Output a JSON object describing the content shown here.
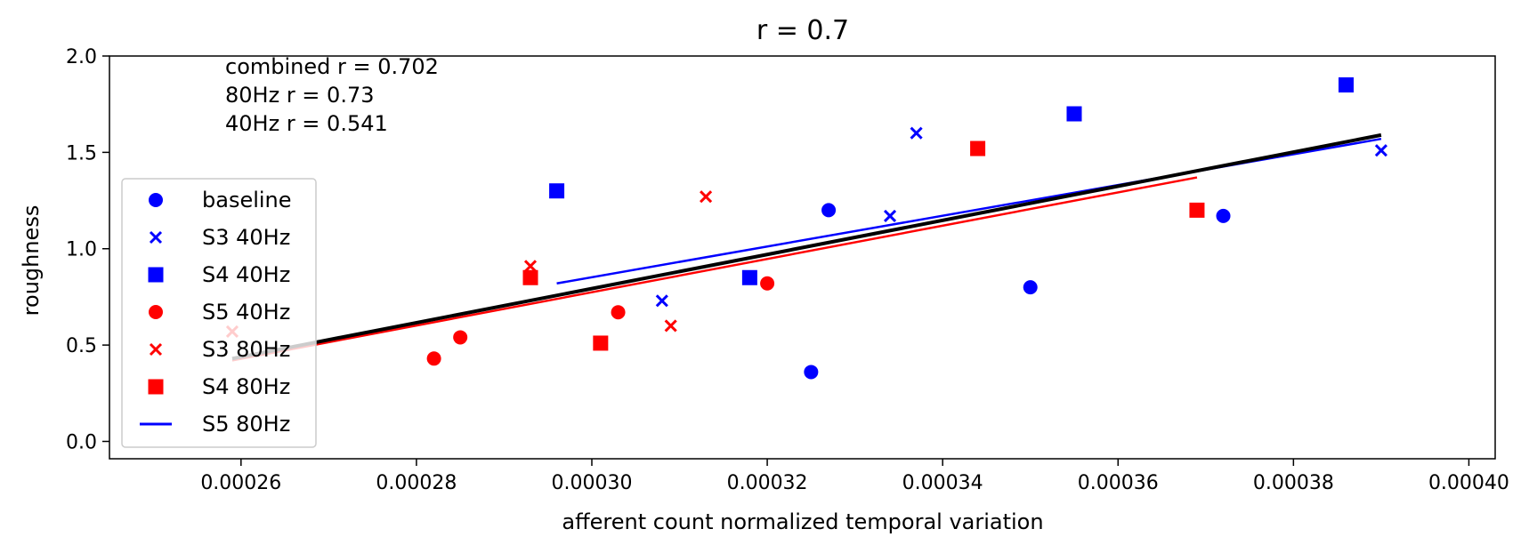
{
  "chart_data": {
    "type": "scatter",
    "title": "r = 0.7",
    "xlabel": "afferent count normalized temporal variation",
    "ylabel": "roughness",
    "xlim": [
      0.000245,
      0.000403
    ],
    "ylim": [
      -0.09,
      2.0
    ],
    "x_ticks": [
      0.00026,
      0.00028,
      0.0003,
      0.00032,
      0.00034,
      0.00036,
      0.00038,
      0.0004
    ],
    "x_tick_labels": [
      "0.00026",
      "0.00028",
      "0.00030",
      "0.00032",
      "0.00034",
      "0.00036",
      "0.00038",
      "0.00040"
    ],
    "y_ticks": [
      0.0,
      0.5,
      1.0,
      1.5,
      2.0
    ],
    "y_tick_labels": [
      "0.0",
      "0.5",
      "1.0",
      "1.5",
      "2.0"
    ],
    "grid": false,
    "legend_placement": "center-left",
    "annotations": [
      "combined r = 0.702",
      "80Hz r = 0.73",
      "40Hz r = 0.541"
    ],
    "series": [
      {
        "name": "baseline",
        "marker": "circle",
        "color": "#0000ff",
        "points": [
          [
            0.000327,
            1.2
          ],
          [
            0.000325,
            0.36
          ],
          [
            0.00035,
            0.8
          ],
          [
            0.000372,
            1.17
          ]
        ]
      },
      {
        "name": "S3 40Hz",
        "marker": "x",
        "color": "#0000ff",
        "points": [
          [
            0.000308,
            0.73
          ],
          [
            0.000334,
            1.17
          ],
          [
            0.000337,
            1.6
          ],
          [
            0.00039,
            1.51
          ]
        ]
      },
      {
        "name": "S4 40Hz",
        "marker": "square",
        "color": "#0000ff",
        "points": [
          [
            0.000296,
            1.3
          ],
          [
            0.000318,
            0.85
          ],
          [
            0.000355,
            1.7
          ],
          [
            0.000386,
            1.85
          ]
        ]
      },
      {
        "name": "S5 40Hz",
        "marker": "circle",
        "color": "#ff0000",
        "points": [
          [
            0.000282,
            0.43
          ],
          [
            0.000285,
            0.54
          ],
          [
            0.000303,
            0.67
          ],
          [
            0.00032,
            0.82
          ]
        ]
      },
      {
        "name": "S3 80Hz",
        "marker": "x",
        "color": "#ff0000",
        "points": [
          [
            0.000259,
            0.57
          ],
          [
            0.000293,
            0.91
          ],
          [
            0.000309,
            0.6
          ],
          [
            0.000313,
            1.27
          ]
        ]
      },
      {
        "name": "S4 80Hz",
        "marker": "square",
        "color": "#ff0000",
        "points": [
          [
            0.000293,
            0.85
          ],
          [
            0.000301,
            0.51
          ],
          [
            0.000344,
            1.52
          ],
          [
            0.000369,
            1.2
          ]
        ]
      },
      {
        "name": "S5 80Hz",
        "marker": "line",
        "color": "#0000ff",
        "points": []
      }
    ],
    "fit_lines": [
      {
        "color": "#0000ff",
        "points": [
          [
            0.000296,
            0.82
          ],
          [
            0.00039,
            1.57
          ]
        ]
      },
      {
        "color": "#ff0000",
        "points": [
          [
            0.000259,
            0.42
          ],
          [
            0.000369,
            1.37
          ]
        ]
      },
      {
        "color": "#000000",
        "points": [
          [
            0.000259,
            0.43
          ],
          [
            0.00039,
            1.59
          ]
        ]
      }
    ]
  }
}
